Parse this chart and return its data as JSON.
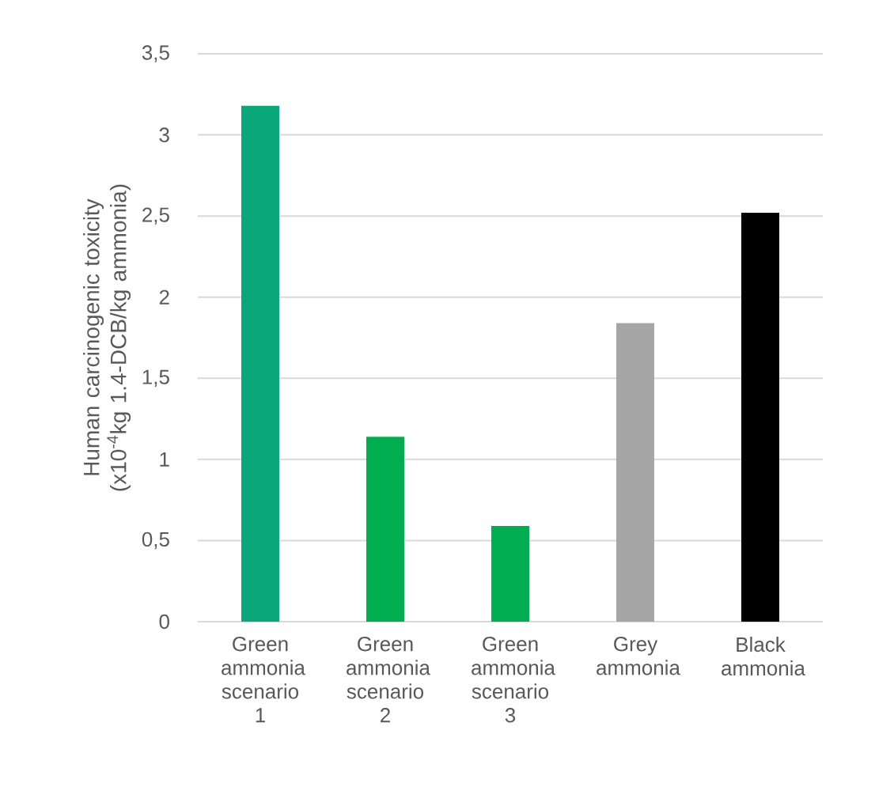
{
  "chart_data": {
    "type": "bar",
    "ylabel": "Human carcinogenic toxicity (x10$^{-4}$kg 1.4-DCB/kg ammonia)",
    "categories": [
      "Green ammonia scenario 1",
      "Green ammonia scenario 2",
      "Green ammonia scenario 3",
      "Grey ammonia",
      "Black ammonia"
    ],
    "values": [
      3.18,
      1.14,
      0.59,
      1.84,
      2.52
    ],
    "colors": [
      "#0aa77a",
      "#00ae4f",
      "#00ae4f",
      "#a6a6a6",
      "#000000"
    ],
    "ylim": [
      0,
      3.5
    ],
    "yticks": [
      0,
      {
        "value": 0.5,
        "label": "0,5"
      },
      1,
      {
        "value": 1.5,
        "label": "1,5"
      },
      2,
      {
        "value": 2.5,
        "label": "2,5"
      },
      3,
      {
        "value": 3.5,
        "label": "3,5"
      }
    ],
    "grid": "y"
  }
}
